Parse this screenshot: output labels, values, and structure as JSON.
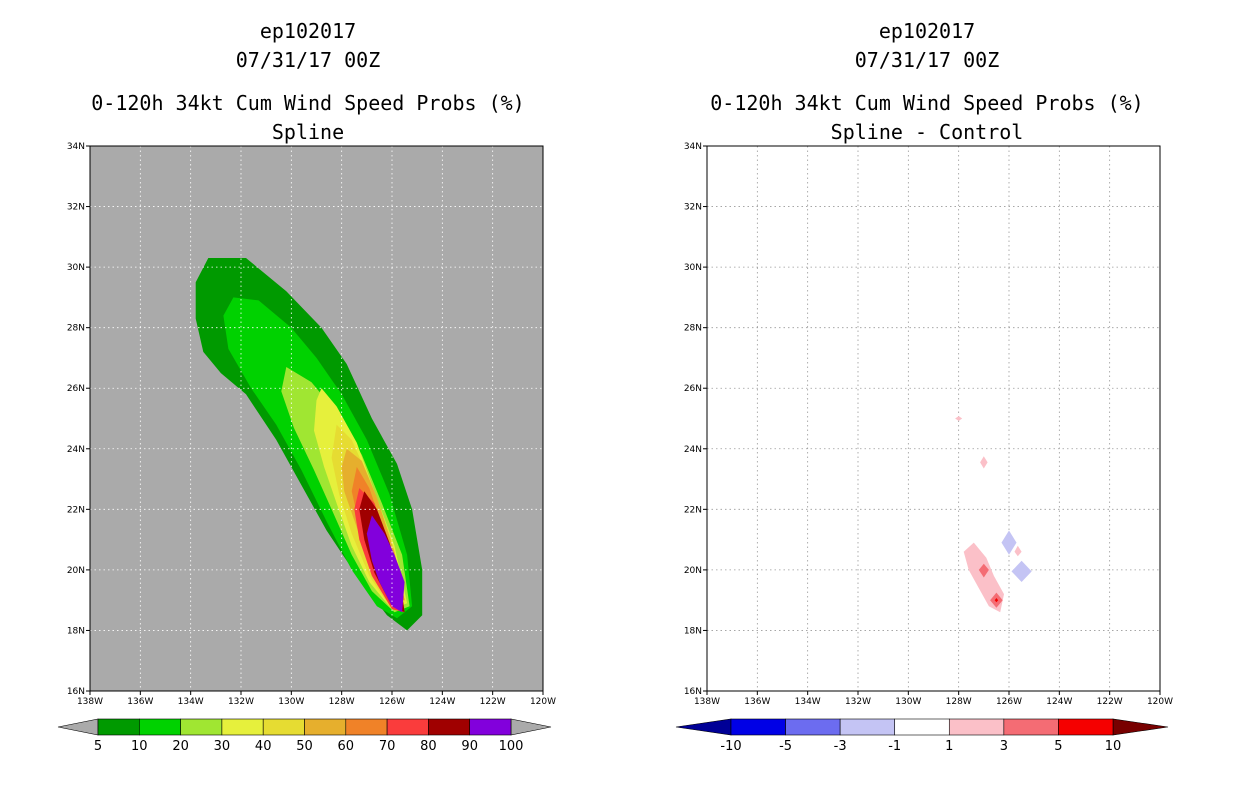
{
  "chart_data": [
    {
      "type": "heatmap",
      "title_line1": "ep102017",
      "title_line2": "07/31/17 00Z",
      "title_line3": "0-120h 34kt Cum Wind Speed Probs (%)",
      "subtitle": "Spline",
      "background_color": "#aaaaaa",
      "x_ticks": [
        "138W",
        "136W",
        "134W",
        "132W",
        "130W",
        "128W",
        "126W",
        "124W",
        "122W",
        "120W"
      ],
      "y_ticks": [
        "16N",
        "18N",
        "20N",
        "22N",
        "24N",
        "26N",
        "28N",
        "30N",
        "32N",
        "34N"
      ],
      "xlim_deg_east": [
        -138,
        -120
      ],
      "ylim_deg_north": [
        16,
        34
      ],
      "colorbar": {
        "labels": [
          "5",
          "10",
          "20",
          "30",
          "40",
          "50",
          "60",
          "70",
          "80",
          "90",
          "100"
        ],
        "colors": [
          "#009a00",
          "#00d200",
          "#a0e632",
          "#e6f03c",
          "#e6dc32",
          "#e6af2d",
          "#f08228",
          "#fa3c3c",
          "#a00000",
          "#8200dc"
        ],
        "end_triangles": "grey"
      },
      "contours": [
        {
          "level": 5,
          "color": "#009a00",
          "ring": [
            [
              -133.3,
              30.3
            ],
            [
              -131.8,
              30.3
            ],
            [
              -130.2,
              29.2
            ],
            [
              -128.8,
              28.0
            ],
            [
              -127.8,
              26.8
            ],
            [
              -126.8,
              25.0
            ],
            [
              -125.8,
              23.5
            ],
            [
              -125.2,
              22.0
            ],
            [
              -124.8,
              20.0
            ],
            [
              -124.8,
              18.5
            ],
            [
              -125.4,
              18.0
            ],
            [
              -126.2,
              18.5
            ],
            [
              -127.4,
              19.8
            ],
            [
              -128.6,
              21.3
            ],
            [
              -129.6,
              22.8
            ],
            [
              -130.6,
              24.3
            ],
            [
              -131.8,
              25.8
            ],
            [
              -132.8,
              26.5
            ],
            [
              -133.5,
              27.2
            ],
            [
              -133.8,
              28.3
            ],
            [
              -133.8,
              29.5
            ]
          ]
        },
        {
          "level": 10,
          "color": "#00d200",
          "ring": [
            [
              -132.3,
              29.0
            ],
            [
              -131.3,
              28.9
            ],
            [
              -130.0,
              28.0
            ],
            [
              -129.0,
              27.0
            ],
            [
              -128.0,
              25.8
            ],
            [
              -127.0,
              24.3
            ],
            [
              -126.1,
              22.5
            ],
            [
              -125.4,
              20.5
            ],
            [
              -125.2,
              18.8
            ],
            [
              -125.8,
              18.4
            ],
            [
              -126.6,
              18.8
            ],
            [
              -127.6,
              20.0
            ],
            [
              -128.6,
              21.6
            ],
            [
              -129.6,
              23.3
            ],
            [
              -130.6,
              24.8
            ],
            [
              -131.6,
              26.0
            ],
            [
              -132.5,
              27.3
            ],
            [
              -132.7,
              28.4
            ]
          ]
        },
        {
          "level": 20,
          "color": "#a0e632",
          "ring": [
            [
              -130.2,
              26.7
            ],
            [
              -129.2,
              26.2
            ],
            [
              -128.2,
              25.2
            ],
            [
              -127.2,
              23.8
            ],
            [
              -126.4,
              22.2
            ],
            [
              -125.6,
              20.5
            ],
            [
              -125.3,
              18.8
            ],
            [
              -125.9,
              18.6
            ],
            [
              -126.8,
              19.3
            ],
            [
              -127.6,
              20.5
            ],
            [
              -128.4,
              22.0
            ],
            [
              -129.1,
              23.3
            ],
            [
              -129.9,
              24.7
            ],
            [
              -130.4,
              25.9
            ]
          ]
        },
        {
          "level": 30,
          "color": "#e6f03c",
          "ring": [
            [
              -128.8,
              26.0
            ],
            [
              -128.2,
              25.4
            ],
            [
              -127.4,
              24.2
            ],
            [
              -126.7,
              22.6
            ],
            [
              -125.9,
              20.8
            ],
            [
              -125.4,
              18.9
            ],
            [
              -126.0,
              18.7
            ],
            [
              -126.9,
              19.6
            ],
            [
              -127.6,
              20.8
            ],
            [
              -128.2,
              22.2
            ],
            [
              -128.7,
              23.4
            ],
            [
              -129.1,
              24.6
            ],
            [
              -129.0,
              25.6
            ]
          ]
        },
        {
          "level": 40,
          "color": "#e6dc32",
          "ring": [
            [
              -128.2,
              24.8
            ],
            [
              -127.6,
              24.3
            ],
            [
              -126.9,
              23.0
            ],
            [
              -126.1,
              21.2
            ],
            [
              -125.5,
              19.0
            ],
            [
              -126.1,
              18.8
            ],
            [
              -126.9,
              19.8
            ],
            [
              -127.6,
              21.2
            ],
            [
              -128.1,
              22.5
            ],
            [
              -128.4,
              23.7
            ]
          ]
        },
        {
          "level": 50,
          "color": "#e6af2d",
          "ring": [
            [
              -127.8,
              24.0
            ],
            [
              -127.2,
              23.6
            ],
            [
              -126.6,
              22.4
            ],
            [
              -125.9,
              20.6
            ],
            [
              -125.5,
              19.0
            ],
            [
              -126.1,
              18.9
            ],
            [
              -126.8,
              20.0
            ],
            [
              -127.4,
              21.4
            ],
            [
              -127.9,
              22.6
            ],
            [
              -128.0,
              23.4
            ]
          ]
        },
        {
          "level": 60,
          "color": "#f08228",
          "ring": [
            [
              -127.4,
              23.4
            ],
            [
              -126.9,
              22.7
            ],
            [
              -126.4,
              21.5
            ],
            [
              -125.8,
              20.2
            ],
            [
              -125.5,
              19.0
            ],
            [
              -126.2,
              19.0
            ],
            [
              -126.8,
              20.2
            ],
            [
              -127.3,
              21.5
            ],
            [
              -127.6,
              22.6
            ]
          ]
        },
        {
          "level": 70,
          "color": "#fa3c3c",
          "ring": [
            [
              -127.3,
              22.7
            ],
            [
              -126.7,
              22.2
            ],
            [
              -126.2,
              21.0
            ],
            [
              -125.7,
              19.8
            ],
            [
              -125.5,
              18.6
            ],
            [
              -126.0,
              18.7
            ],
            [
              -126.8,
              19.8
            ],
            [
              -127.3,
              21.0
            ],
            [
              -127.5,
              22.0
            ]
          ]
        },
        {
          "level": 80,
          "color": "#a00000",
          "ring": [
            [
              -127.1,
              22.6
            ],
            [
              -126.6,
              22.0
            ],
            [
              -126.1,
              20.9
            ],
            [
              -125.7,
              19.8
            ],
            [
              -125.5,
              18.6
            ],
            [
              -126.0,
              18.8
            ],
            [
              -126.7,
              19.9
            ],
            [
              -127.1,
              21.0
            ],
            [
              -127.3,
              22.0
            ]
          ]
        },
        {
          "level": 90,
          "color": "#8200dc",
          "ring": [
            [
              -126.8,
              21.8
            ],
            [
              -126.3,
              21.2
            ],
            [
              -125.9,
              20.5
            ],
            [
              -125.5,
              19.6
            ],
            [
              -125.6,
              18.6
            ],
            [
              -126.0,
              18.8
            ],
            [
              -126.5,
              19.6
            ],
            [
              -126.8,
              20.3
            ],
            [
              -127.0,
              21.2
            ]
          ]
        }
      ]
    },
    {
      "type": "heatmap",
      "title_line1": "ep102017",
      "title_line2": "07/31/17 00Z",
      "title_line3": "0-120h 34kt Cum Wind Speed Probs (%)",
      "subtitle": "Spline - Control",
      "background_color": "#ffffff",
      "x_ticks": [
        "138W",
        "136W",
        "134W",
        "132W",
        "130W",
        "128W",
        "126W",
        "124W",
        "122W",
        "120W"
      ],
      "y_ticks": [
        "16N",
        "18N",
        "20N",
        "22N",
        "24N",
        "26N",
        "28N",
        "30N",
        "32N",
        "34N"
      ],
      "xlim_deg_east": [
        -138,
        -120
      ],
      "ylim_deg_north": [
        16,
        34
      ],
      "colorbar": {
        "labels": [
          "-10",
          "-5",
          "-3",
          "-1",
          "1",
          "3",
          "5",
          "10"
        ],
        "colors": [
          "#0000e6",
          "#6c6cf0",
          "#c4c4f4",
          "#ffffff",
          "#fbc0c8",
          "#f46c74",
          "#f50000"
        ],
        "left_triangle": "#000096",
        "right_triangle": "#780000"
      },
      "contours": [
        {
          "level": 1,
          "color": "#fbc0c8",
          "ring": [
            [
              -128.0,
              25.08
            ],
            [
              -127.86,
              25.0
            ],
            [
              -128.0,
              24.92
            ],
            [
              -128.14,
              25.0
            ]
          ]
        },
        {
          "level": 1,
          "color": "#fbc0c8",
          "ring": [
            [
              -127.0,
              23.75
            ],
            [
              -126.85,
              23.55
            ],
            [
              -127.0,
              23.35
            ],
            [
              -127.15,
              23.55
            ]
          ]
        },
        {
          "level": 1,
          "color": "#fbc0c8",
          "ring": [
            [
              -125.65,
              20.8
            ],
            [
              -125.5,
              20.6
            ],
            [
              -125.65,
              20.45
            ],
            [
              -125.78,
              20.6
            ]
          ]
        },
        {
          "level": 1,
          "color": "#fbc0c8",
          "ring": [
            [
              -127.4,
              20.9
            ],
            [
              -126.9,
              20.4
            ],
            [
              -126.6,
              19.8
            ],
            [
              -126.2,
              19.2
            ],
            [
              -126.35,
              18.6
            ],
            [
              -126.8,
              18.8
            ],
            [
              -127.2,
              19.4
            ],
            [
              -127.6,
              20.0
            ],
            [
              -127.8,
              20.6
            ]
          ]
        },
        {
          "level": 3,
          "color": "#f46c74",
          "ring": [
            [
              -127.0,
              20.2
            ],
            [
              -126.8,
              20.0
            ],
            [
              -127.0,
              19.75
            ],
            [
              -127.2,
              20.0
            ]
          ]
        },
        {
          "level": 3,
          "color": "#f46c74",
          "ring": [
            [
              -126.5,
              19.25
            ],
            [
              -126.25,
              19.0
            ],
            [
              -126.5,
              18.75
            ],
            [
              -126.75,
              19.0
            ]
          ]
        },
        {
          "level": 5,
          "color": "#f50000",
          "ring": [
            [
              -126.5,
              19.07
            ],
            [
              -126.43,
              19.0
            ],
            [
              -126.5,
              18.93
            ],
            [
              -126.57,
              19.0
            ]
          ]
        },
        {
          "level": -1,
          "color": "#c4c4f4",
          "ring": [
            [
              -126.0,
              21.3
            ],
            [
              -125.7,
              20.9
            ],
            [
              -126.0,
              20.5
            ],
            [
              -126.3,
              20.9
            ]
          ]
        },
        {
          "level": -1,
          "color": "#c4c4f4",
          "ring": [
            [
              -125.5,
              20.3
            ],
            [
              -125.1,
              19.95
            ],
            [
              -125.5,
              19.6
            ],
            [
              -125.9,
              19.95
            ]
          ]
        }
      ]
    }
  ]
}
